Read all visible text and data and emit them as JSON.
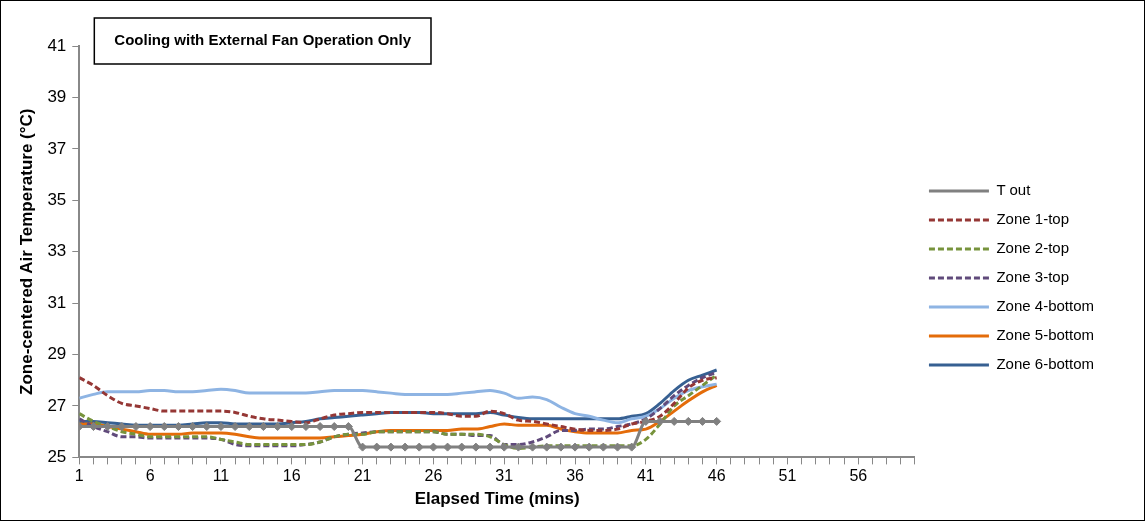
{
  "chart_data": {
    "type": "line",
    "title": "Cooling with External Fan Operation Only",
    "xlabel": "Elapsed Time (mins)",
    "ylabel": "Zone-centered Air Temperature (°C)",
    "x": [
      1,
      2,
      3,
      4,
      5,
      6,
      7,
      8,
      9,
      10,
      11,
      12,
      13,
      14,
      15,
      16,
      17,
      18,
      19,
      20,
      21,
      22,
      23,
      24,
      25,
      26,
      27,
      28,
      29,
      30,
      31,
      32,
      33,
      34,
      35,
      36,
      37,
      38,
      39,
      40,
      41,
      42,
      43,
      44,
      45,
      46
    ],
    "xlim": [
      1,
      60
    ],
    "xticks": [
      1,
      {
        "value": 2,
        "label": null
      },
      {
        "value": 3,
        "label": null
      },
      {
        "value": 4,
        "label": null
      },
      {
        "value": 5,
        "label": null
      },
      6,
      {
        "value": 7,
        "label": null
      },
      {
        "value": 8,
        "label": null
      },
      {
        "value": 9,
        "label": null
      },
      {
        "value": 10,
        "label": null
      },
      11,
      {
        "value": 12,
        "label": null
      },
      {
        "value": 13,
        "label": null
      },
      {
        "value": 14,
        "label": null
      },
      {
        "value": 15,
        "label": null
      },
      16,
      {
        "value": 17,
        "label": null
      },
      {
        "value": 18,
        "label": null
      },
      {
        "value": 19,
        "label": null
      },
      {
        "value": 20,
        "label": null
      },
      21,
      {
        "value": 22,
        "label": null
      },
      {
        "value": 23,
        "label": null
      },
      {
        "value": 24,
        "label": null
      },
      {
        "value": 25,
        "label": null
      },
      26,
      {
        "value": 27,
        "label": null
      },
      {
        "value": 28,
        "label": null
      },
      {
        "value": 29,
        "label": null
      },
      {
        "value": 30,
        "label": null
      },
      31,
      {
        "value": 32,
        "label": null
      },
      {
        "value": 33,
        "label": null
      },
      {
        "value": 34,
        "label": null
      },
      {
        "value": 35,
        "label": null
      },
      36,
      {
        "value": 37,
        "label": null
      },
      {
        "value": 38,
        "label": null
      },
      {
        "value": 39,
        "label": null
      },
      {
        "value": 40,
        "label": null
      },
      41,
      {
        "value": 42,
        "label": null
      },
      {
        "value": 43,
        "label": null
      },
      {
        "value": 44,
        "label": null
      },
      {
        "value": 45,
        "label": null
      },
      46,
      {
        "value": 47,
        "label": null
      },
      {
        "value": 48,
        "label": null
      },
      {
        "value": 49,
        "label": null
      },
      {
        "value": 50,
        "label": null
      },
      51,
      {
        "value": 52,
        "label": null
      },
      {
        "value": 53,
        "label": null
      },
      {
        "value": 54,
        "label": null
      },
      {
        "value": 55,
        "label": null
      },
      56,
      {
        "value": 57,
        "label": null
      },
      {
        "value": 58,
        "label": null
      },
      {
        "value": 59,
        "label": null
      },
      {
        "value": 60,
        "label": null
      }
    ],
    "ylim": [
      25,
      41
    ],
    "yticks": [
      25,
      27,
      29,
      31,
      33,
      35,
      37,
      39,
      41
    ],
    "grid": false,
    "legend": "right",
    "marker": "none",
    "series": [
      {
        "name": "T out",
        "color": "#808080",
        "marker": "diamond",
        "line_style": "solid",
        "values": [
          26.2,
          26.2,
          26.2,
          26.2,
          26.2,
          26.2,
          26.2,
          26.2,
          26.2,
          26.2,
          26.2,
          26.2,
          26.2,
          26.2,
          26.2,
          26.2,
          26.2,
          26.2,
          26.2,
          26.2,
          25.4,
          25.4,
          25.4,
          25.4,
          25.4,
          25.4,
          25.4,
          25.4,
          25.4,
          25.4,
          25.4,
          25.4,
          25.4,
          25.4,
          25.4,
          25.4,
          25.4,
          25.4,
          25.4,
          25.4,
          26.4,
          26.4,
          26.4,
          26.4,
          26.4,
          26.4
        ]
      },
      {
        "name": "Zone 1-top",
        "color": "#953735",
        "line_style": "dashed",
        "values": [
          28.1,
          27.8,
          27.4,
          27.1,
          27.0,
          26.9,
          26.8,
          26.8,
          26.8,
          26.8,
          26.8,
          26.75,
          26.6,
          26.5,
          26.45,
          26.4,
          26.35,
          26.5,
          26.65,
          26.7,
          26.75,
          26.75,
          26.75,
          26.75,
          26.75,
          26.75,
          26.7,
          26.6,
          26.6,
          26.8,
          26.7,
          26.45,
          26.4,
          26.3,
          26.2,
          26.1,
          26.05,
          26.05,
          26.1,
          26.3,
          26.4,
          26.6,
          27.1,
          27.7,
          28.0,
          28.1
        ]
      },
      {
        "name": "Zone 2-top",
        "color": "#77933c",
        "line_style": "dashed",
        "values": [
          26.7,
          26.4,
          26.2,
          26.0,
          25.9,
          25.8,
          25.8,
          25.8,
          25.8,
          25.8,
          25.7,
          25.6,
          25.5,
          25.5,
          25.5,
          25.5,
          25.5,
          25.6,
          25.8,
          25.9,
          25.9,
          26.0,
          26.0,
          26.0,
          26.0,
          26.0,
          25.9,
          25.9,
          25.9,
          25.8,
          25.5,
          25.35,
          25.4,
          25.45,
          25.45,
          25.45,
          25.45,
          25.45,
          25.45,
          25.45,
          25.7,
          26.3,
          27.0,
          27.4,
          27.8,
          28.2
        ]
      },
      {
        "name": "Zone 3-top",
        "color": "#604a7b",
        "line_style": "dashed",
        "values": [
          26.5,
          26.2,
          26.0,
          25.8,
          25.8,
          25.75,
          25.75,
          25.75,
          25.75,
          25.75,
          25.7,
          25.5,
          25.45,
          25.45,
          25.45,
          25.45,
          25.5,
          25.6,
          25.8,
          25.9,
          25.95,
          26.0,
          26.0,
          26.0,
          26.0,
          26.0,
          25.9,
          25.9,
          25.85,
          25.85,
          25.5,
          25.5,
          25.6,
          25.8,
          26.05,
          26.05,
          26.1,
          26.1,
          26.2,
          26.3,
          26.5,
          26.9,
          27.4,
          27.8,
          28.1,
          28.3
        ]
      },
      {
        "name": "Zone 4-bottom",
        "color": "#8eb4e3",
        "line_style": "solid",
        "values": [
          27.3,
          27.45,
          27.55,
          27.55,
          27.55,
          27.6,
          27.6,
          27.55,
          27.55,
          27.6,
          27.65,
          27.6,
          27.5,
          27.5,
          27.5,
          27.5,
          27.5,
          27.55,
          27.6,
          27.6,
          27.6,
          27.55,
          27.5,
          27.45,
          27.45,
          27.45,
          27.45,
          27.5,
          27.55,
          27.6,
          27.5,
          27.3,
          27.35,
          27.25,
          26.95,
          26.7,
          26.6,
          26.45,
          26.35,
          26.5,
          26.6,
          26.9,
          27.3,
          27.6,
          27.75,
          27.85
        ]
      },
      {
        "name": "Zone 5-bottom",
        "color": "#e46c0a",
        "line_style": "solid",
        "values": [
          26.3,
          26.3,
          26.2,
          26.1,
          26.0,
          25.9,
          25.9,
          25.9,
          25.95,
          25.95,
          25.95,
          25.9,
          25.8,
          25.75,
          25.75,
          25.75,
          25.75,
          25.75,
          25.8,
          25.85,
          25.9,
          26.0,
          26.05,
          26.05,
          26.05,
          26.05,
          26.05,
          26.1,
          26.1,
          26.2,
          26.3,
          26.25,
          26.25,
          26.25,
          26.1,
          26.0,
          25.95,
          25.95,
          25.95,
          26.05,
          26.1,
          26.4,
          26.8,
          27.2,
          27.55,
          27.8
        ]
      },
      {
        "name": "Zone 6-bottom",
        "color": "#376092",
        "line_style": "solid",
        "values": [
          26.4,
          26.4,
          26.35,
          26.3,
          26.25,
          26.25,
          26.25,
          26.25,
          26.3,
          26.35,
          26.35,
          26.3,
          26.3,
          26.3,
          26.3,
          26.35,
          26.4,
          26.5,
          26.55,
          26.6,
          26.65,
          26.7,
          26.75,
          26.75,
          26.75,
          26.7,
          26.7,
          26.7,
          26.7,
          26.75,
          26.65,
          26.55,
          26.5,
          26.5,
          26.5,
          26.5,
          26.5,
          26.5,
          26.5,
          26.6,
          26.7,
          27.1,
          27.6,
          28.0,
          28.2,
          28.4
        ]
      }
    ]
  }
}
